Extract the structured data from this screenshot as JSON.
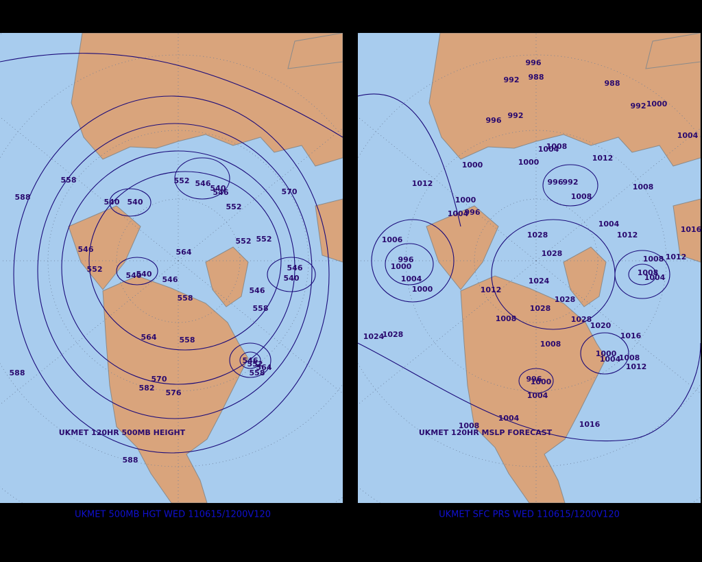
{
  "panels": [
    {
      "map_label": "UKMET 120HR 500MB HEIGHT",
      "caption": "UKMET 500MB HGT WED 110615/1200V120",
      "contour_labels": [
        558,
        588,
        540,
        540,
        552,
        546,
        540,
        546,
        570,
        552,
        546,
        564,
        552,
        552,
        552,
        540,
        540,
        546,
        546,
        540,
        546,
        558,
        558,
        564,
        558,
        546,
        552,
        564,
        558,
        588,
        570,
        582,
        576,
        588
      ]
    },
    {
      "map_label": "UKMET 120HR MSLP FORECAST",
      "caption": "UKMET SFC PRS WED 110615/1200V120",
      "contour_labels": [
        996,
        988,
        992,
        988,
        992,
        1000,
        996,
        992,
        1004,
        1004,
        1008,
        1012,
        1000,
        1000,
        1012,
        996,
        992,
        1008,
        1000,
        1008,
        996,
        1004,
        1004,
        1012,
        1016,
        1006,
        1028,
        1028,
        996,
        1000,
        1012,
        1008,
        1008,
        1004,
        1004,
        1024,
        1000,
        1012,
        1028,
        1028,
        1008,
        1028,
        1020,
        1016,
        1024,
        1028,
        1008,
        1000,
        1004,
        1008,
        1012,
        996,
        1000,
        1004,
        1004,
        1008,
        1016
      ]
    }
  ]
}
